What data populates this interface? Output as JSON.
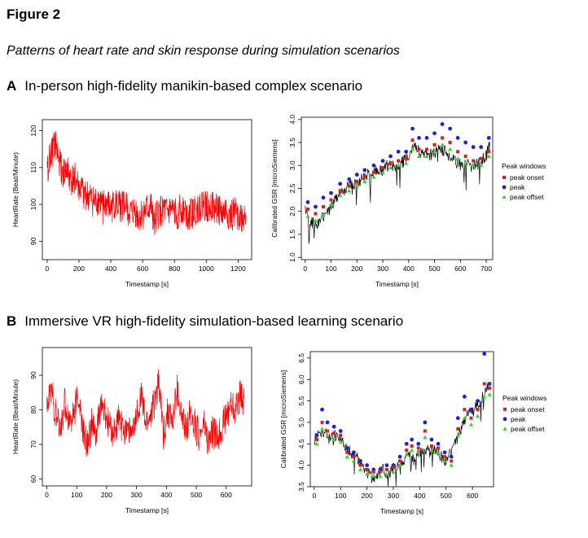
{
  "figure": {
    "title": "Figure 2",
    "subtitle": "Patterns of heart rate and skin response during simulation scenarios"
  },
  "panels": {
    "A": {
      "letter": "A",
      "title": "In-person high-fidelity manikin-based complex scenario"
    },
    "B": {
      "letter": "B",
      "title": "Immersive VR high-fidelity simulation-based learning scenario"
    }
  },
  "colors": {
    "hr_line": "#ff0000",
    "gsr_line": "#000000",
    "peak_onset": "#e41a1c",
    "peak": "#1f1fe0",
    "peak_offset": "#22dd22"
  },
  "chart_data": [
    {
      "id": "A_hr",
      "type": "line",
      "xlabel": "Timestamp [s]",
      "ylabel": "HeartRate (Beat/Minute)",
      "xlim": [
        -30,
        1285
      ],
      "ylim": [
        85,
        123
      ],
      "xticks": [
        0,
        200,
        400,
        600,
        800,
        1000,
        1200
      ],
      "yticks": [
        90,
        100,
        110,
        120
      ],
      "series": [
        {
          "name": "HeartRate",
          "x": [
            0,
            25,
            50,
            75,
            100,
            125,
            150,
            175,
            200,
            225,
            250,
            275,
            300,
            325,
            350,
            375,
            400,
            425,
            450,
            475,
            500,
            525,
            550,
            575,
            600,
            625,
            650,
            675,
            700,
            725,
            750,
            775,
            800,
            825,
            850,
            875,
            900,
            925,
            950,
            975,
            1000,
            1025,
            1050,
            1075,
            1100,
            1125,
            1150,
            1175,
            1200,
            1225,
            1250
          ],
          "values": [
            110,
            113,
            116,
            112,
            108,
            109,
            106,
            107,
            104,
            103,
            102,
            101,
            100,
            101,
            99,
            100,
            98,
            100,
            99,
            100,
            99,
            97,
            98,
            96,
            97,
            98,
            99,
            96,
            97,
            99,
            97,
            98,
            97,
            98,
            99,
            98,
            97,
            98,
            99,
            100,
            99,
            100,
            98,
            99,
            97,
            98,
            96,
            98,
            97,
            96,
            97
          ]
        }
      ]
    },
    {
      "id": "A_gsr",
      "type": "line",
      "xlabel": "Timestamp [s]",
      "ylabel": "Calibrated GSR [microSiemens]",
      "xlim": [
        -15,
        725
      ],
      "ylim": [
        0.95,
        4.05
      ],
      "xticks": [
        0,
        100,
        200,
        300,
        400,
        500,
        600,
        700
      ],
      "yticks": [
        1.0,
        1.5,
        2.0,
        2.5,
        3.0,
        3.5,
        4.0
      ],
      "legend": {
        "title": "Peak windows",
        "position": "right",
        "items": [
          "peak onset",
          "peak",
          "peak offset"
        ]
      },
      "series": [
        {
          "name": "GSR",
          "x": [
            0,
            20,
            40,
            60,
            80,
            100,
            120,
            140,
            160,
            180,
            200,
            220,
            240,
            260,
            280,
            300,
            320,
            340,
            360,
            380,
            400,
            420,
            440,
            460,
            480,
            500,
            520,
            540,
            560,
            580,
            600,
            620,
            640,
            660,
            680,
            700,
            715
          ],
          "values": [
            2.0,
            1.8,
            1.7,
            1.8,
            1.9,
            2.1,
            2.3,
            2.4,
            2.5,
            2.6,
            2.6,
            2.7,
            2.8,
            2.8,
            2.9,
            2.9,
            3.0,
            3.0,
            3.0,
            3.1,
            3.2,
            3.4,
            3.3,
            3.3,
            3.2,
            3.3,
            3.4,
            3.3,
            3.2,
            3.1,
            3.0,
            3.1,
            3.0,
            3.0,
            3.1,
            3.2,
            3.5
          ]
        },
        {
          "name": "peak",
          "x": [
            10,
            40,
            70,
            100,
            135,
            170,
            200,
            230,
            265,
            300,
            330,
            360,
            390,
            415,
            440,
            470,
            500,
            530,
            560,
            590,
            620,
            650,
            680,
            710
          ],
          "values": [
            2.2,
            2.1,
            2.3,
            2.4,
            2.6,
            2.7,
            2.8,
            2.9,
            3.0,
            3.1,
            3.2,
            3.3,
            3.3,
            3.8,
            3.6,
            3.6,
            3.7,
            3.9,
            3.8,
            3.6,
            3.5,
            3.4,
            3.4,
            3.6
          ]
        },
        {
          "name": "peak onset",
          "x": [
            10,
            40,
            70,
            100,
            135,
            170,
            200,
            230,
            265,
            300,
            330,
            360,
            390,
            415,
            440,
            470,
            500,
            530,
            560,
            590,
            620,
            650,
            680,
            710
          ],
          "values": [
            2.05,
            1.95,
            2.1,
            2.25,
            2.45,
            2.55,
            2.65,
            2.75,
            2.85,
            2.95,
            3.05,
            3.1,
            3.15,
            3.55,
            3.35,
            3.35,
            3.45,
            3.6,
            3.5,
            3.3,
            3.2,
            3.1,
            3.15,
            3.3
          ]
        },
        {
          "name": "peak offset",
          "x": [
            10,
            40,
            70,
            100,
            135,
            170,
            200,
            230,
            265,
            300,
            330,
            360,
            390,
            415,
            440,
            470,
            500,
            530,
            560,
            590,
            620,
            650,
            680,
            710
          ],
          "values": [
            1.9,
            1.8,
            1.95,
            2.15,
            2.35,
            2.45,
            2.55,
            2.65,
            2.75,
            2.85,
            2.95,
            3.0,
            3.05,
            3.35,
            3.2,
            3.2,
            3.3,
            3.45,
            3.35,
            3.15,
            3.05,
            3.0,
            3.0,
            3.2
          ]
        }
      ]
    },
    {
      "id": "B_hr",
      "type": "line",
      "xlabel": "Timestamp [s]",
      "ylabel": "HeartRate (Beat/Minute)",
      "xlim": [
        -15,
        685
      ],
      "ylim": [
        58,
        98
      ],
      "xticks": [
        0,
        100,
        200,
        300,
        400,
        500,
        600
      ],
      "yticks": [
        60,
        70,
        80,
        90
      ],
      "series": [
        {
          "name": "HeartRate",
          "x": [
            0,
            15,
            30,
            45,
            60,
            75,
            90,
            105,
            120,
            135,
            150,
            165,
            180,
            195,
            210,
            225,
            240,
            255,
            270,
            285,
            300,
            315,
            330,
            345,
            360,
            375,
            390,
            405,
            420,
            435,
            450,
            465,
            480,
            495,
            510,
            525,
            540,
            555,
            570,
            585,
            600,
            615,
            630,
            645,
            660
          ],
          "values": [
            80,
            86,
            78,
            74,
            82,
            77,
            79,
            84,
            74,
            70,
            76,
            72,
            82,
            78,
            75,
            73,
            77,
            74,
            76,
            72,
            78,
            85,
            76,
            78,
            82,
            88,
            73,
            80,
            76,
            86,
            78,
            74,
            80,
            76,
            72,
            76,
            70,
            74,
            72,
            75,
            78,
            82,
            80,
            84,
            83
          ]
        }
      ]
    },
    {
      "id": "B_gsr",
      "type": "line",
      "xlabel": "Timestamp [s]",
      "ylabel": "Calibrated GSR [microSiemens]",
      "xlim": [
        -15,
        680
      ],
      "ylim": [
        3.5,
        6.65
      ],
      "xticks": [
        0,
        100,
        200,
        300,
        400,
        500,
        600
      ],
      "yticks": [
        3.5,
        4.0,
        4.5,
        5.0,
        5.5,
        6.0,
        6.5
      ],
      "legend": {
        "title": "Peak windows",
        "position": "right",
        "items": [
          "peak onset",
          "peak",
          "peak offset"
        ]
      },
      "series": [
        {
          "name": "GSR",
          "x": [
            0,
            20,
            40,
            60,
            80,
            100,
            120,
            140,
            160,
            180,
            200,
            220,
            240,
            260,
            280,
            300,
            320,
            340,
            360,
            380,
            400,
            420,
            440,
            460,
            480,
            500,
            520,
            540,
            560,
            580,
            600,
            620,
            640,
            660
          ],
          "values": [
            4.6,
            4.7,
            4.8,
            4.6,
            4.7,
            4.6,
            4.4,
            4.3,
            4.2,
            4.0,
            3.9,
            3.7,
            3.8,
            3.9,
            3.8,
            3.9,
            4.0,
            4.1,
            4.2,
            4.1,
            4.3,
            4.4,
            4.3,
            4.4,
            4.2,
            4.1,
            4.3,
            4.6,
            4.9,
            5.2,
            5.3,
            5.4,
            5.6,
            5.9
          ]
        },
        {
          "name": "peak",
          "x": [
            10,
            30,
            50,
            75,
            100,
            125,
            150,
            175,
            200,
            225,
            250,
            275,
            300,
            325,
            350,
            370,
            395,
            420,
            445,
            470,
            495,
            520,
            545,
            570,
            595,
            620,
            645,
            665
          ],
          "values": [
            4.7,
            5.3,
            5.0,
            4.9,
            4.8,
            4.4,
            4.3,
            4.1,
            4.0,
            3.9,
            3.9,
            4.0,
            4.0,
            4.2,
            4.5,
            4.6,
            4.5,
            5.0,
            4.6,
            4.5,
            4.3,
            4.2,
            5.1,
            5.6,
            5.3,
            5.5,
            6.6,
            5.9
          ]
        },
        {
          "name": "peak onset",
          "x": [
            10,
            30,
            50,
            75,
            100,
            125,
            150,
            175,
            200,
            225,
            250,
            275,
            300,
            325,
            350,
            370,
            395,
            420,
            445,
            470,
            495,
            520,
            545,
            570,
            595,
            620,
            645,
            665
          ],
          "values": [
            4.6,
            5.0,
            4.8,
            4.75,
            4.7,
            4.3,
            4.2,
            4.0,
            3.9,
            3.85,
            3.85,
            3.9,
            3.95,
            4.1,
            4.35,
            4.45,
            4.4,
            4.8,
            4.45,
            4.4,
            4.2,
            4.1,
            4.85,
            5.3,
            5.1,
            5.3,
            5.9,
            5.8
          ]
        },
        {
          "name": "peak offset",
          "x": [
            10,
            30,
            50,
            75,
            100,
            125,
            150,
            175,
            200,
            225,
            250,
            275,
            300,
            325,
            350,
            370,
            395,
            420,
            445,
            470,
            495,
            520,
            545,
            570,
            595,
            620,
            645,
            665
          ],
          "values": [
            4.5,
            4.85,
            4.7,
            4.6,
            4.55,
            4.2,
            4.1,
            3.9,
            3.8,
            3.75,
            3.75,
            3.8,
            3.85,
            4.0,
            4.25,
            4.35,
            4.3,
            4.65,
            4.35,
            4.3,
            4.1,
            4.0,
            4.7,
            5.1,
            4.95,
            5.15,
            5.6,
            5.65
          ]
        }
      ]
    }
  ]
}
